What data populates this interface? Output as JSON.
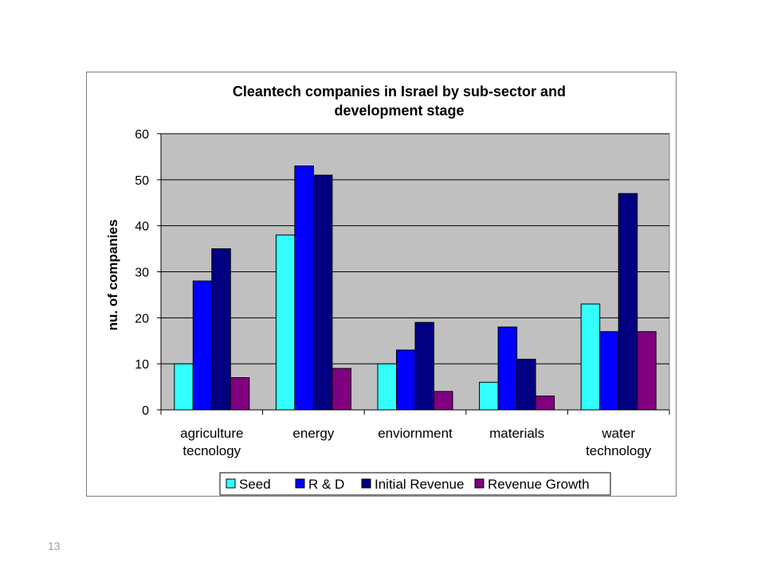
{
  "slide": {
    "number": "13"
  },
  "chart_data": {
    "type": "bar",
    "title": "Cleantech companies in Israel by sub-sector and development stage",
    "title_lines": [
      "Cleantech companies in Israel by sub-sector and",
      "development stage"
    ],
    "xlabel": "",
    "ylabel": "nu. of companies",
    "ylim": [
      0,
      60
    ],
    "yticks": [
      0,
      10,
      20,
      30,
      40,
      50,
      60
    ],
    "grid": true,
    "legend_position": "bottom",
    "categories": [
      "agriculture tecnology",
      "energy",
      "enviornment",
      "materials",
      "water technology"
    ],
    "category_lines": [
      [
        "agriculture",
        "tecnology"
      ],
      [
        "energy"
      ],
      [
        "enviornment"
      ],
      [
        "materials"
      ],
      [
        "water",
        "technology"
      ]
    ],
    "series": [
      {
        "name": "Seed",
        "color": "#33ffff",
        "values": [
          10,
          38,
          10,
          6,
          23
        ]
      },
      {
        "name": "R & D",
        "color": "#0000ff",
        "values": [
          28,
          53,
          13,
          18,
          17
        ]
      },
      {
        "name": "Initial Revenue",
        "color": "#000080",
        "values": [
          35,
          51,
          19,
          11,
          47
        ]
      },
      {
        "name": "Revenue Growth",
        "color": "#800080",
        "values": [
          7,
          9,
          4,
          3,
          17
        ]
      }
    ],
    "plot_background": "#c0c0c0"
  }
}
